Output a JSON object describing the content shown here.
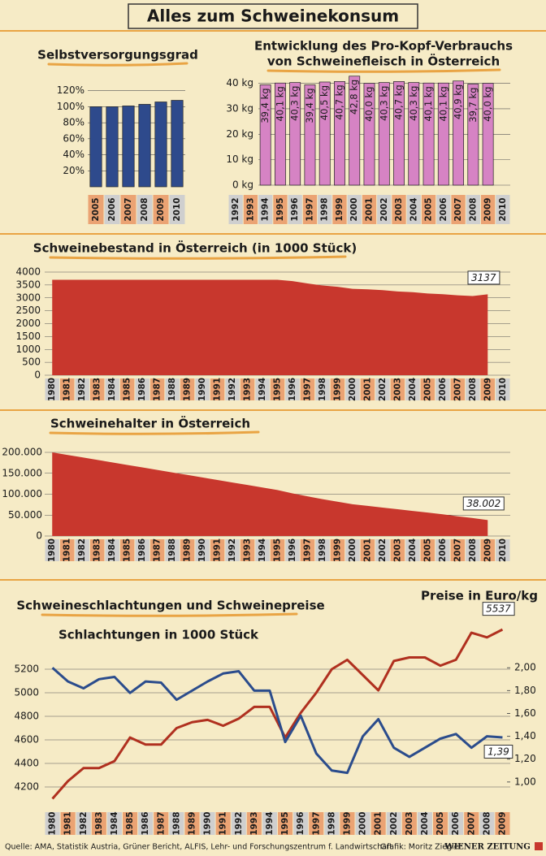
{
  "title": "Alles zum Schweinekonsum",
  "footer": {
    "source": "Quelle: AMA, Statistik Austria, Grüner Bericht, ALFIS, Lehr- und Forschungszentrum f. Landwirtschaft",
    "credit": "Grafik: Moritz Ziegler",
    "brand": "WIENER ZEITUNG"
  },
  "chart_data": [
    {
      "type": "bar",
      "title": "Selbstversorgungsgrad",
      "color": "#2e4a8c",
      "categories": [
        "2005",
        "2006",
        "2007",
        "2008",
        "2009",
        "2010"
      ],
      "values": [
        100,
        100,
        101,
        103,
        106,
        108
      ],
      "ylim": [
        0,
        140
      ],
      "yticks": [
        {
          "value": 20,
          "label": "20%"
        },
        {
          "value": 40,
          "label": "40%"
        },
        {
          "value": 60,
          "label": "60%"
        },
        {
          "value": 80,
          "label": "80%"
        },
        {
          "value": 100,
          "label": "100%"
        },
        {
          "value": 120,
          "label": "120%"
        }
      ],
      "grid": true
    },
    {
      "type": "bar",
      "title": [
        "Entwicklung des Pro-Kopf-Verbrauchs",
        "von Schweinefleisch in Österreich"
      ],
      "color": "#d683c4",
      "categories": [
        "1992",
        "1993",
        "1994",
        "1995",
        "1996",
        "1997",
        "1998",
        "1999",
        "2000",
        "2001",
        "2002",
        "2003",
        "2004",
        "2005",
        "2006",
        "2007",
        "2008",
        "2009",
        "2010"
      ],
      "values": [
        null,
        null,
        39.4,
        40.1,
        40.3,
        39.4,
        40.5,
        40.7,
        42.8,
        40.0,
        40.3,
        40.7,
        40.3,
        40.1,
        40.1,
        40.9,
        39.7,
        40.0,
        null
      ],
      "value_labels": [
        null,
        null,
        "39,4 kg",
        "40,1 kg",
        "40,3 kg",
        "39,4 kg",
        "40,5 kg",
        "40,7 kg",
        "42,8 kg",
        "40,0 kg",
        "40,3 kg",
        "40,7 kg",
        "40,3 kg",
        "40,1 kg",
        "40,1 kg",
        "40,9 kg",
        "39,7 kg",
        "40,0 kg",
        null
      ],
      "ylim": [
        0,
        44
      ],
      "yticks": [
        {
          "value": 0,
          "label": "0 kg"
        },
        {
          "value": 10,
          "label": "10 kg"
        },
        {
          "value": 20,
          "label": "20 kg"
        },
        {
          "value": 30,
          "label": "30 kg"
        },
        {
          "value": 40,
          "label": "40 kg"
        }
      ],
      "grid": true
    },
    {
      "type": "area",
      "title": "Schweinebestand in Österreich (in 1000 Stück)",
      "color": "#c8372d",
      "categories": [
        "1980",
        "1981",
        "1982",
        "1983",
        "1984",
        "1985",
        "1986",
        "1987",
        "1988",
        "1989",
        "1990",
        "1991",
        "1992",
        "1993",
        "1994",
        "1995",
        "1996",
        "1997",
        "1998",
        "1999",
        "2000",
        "2001",
        "2002",
        "2003",
        "2004",
        "2005",
        "2006",
        "2007",
        "2008",
        "2009",
        "2010"
      ],
      "values": [
        3700,
        3700,
        3700,
        3700,
        3700,
        3700,
        3700,
        3700,
        3700,
        3700,
        3700,
        3700,
        3700,
        3700,
        3700,
        3700,
        3650,
        3560,
        3480,
        3430,
        3350,
        3330,
        3300,
        3250,
        3220,
        3170,
        3140,
        3100,
        3070,
        3137,
        null
      ],
      "value_labels": [
        null,
        null,
        null,
        null,
        null,
        null,
        null,
        null,
        null,
        null,
        null,
        null,
        null,
        null,
        null,
        null,
        null,
        null,
        null,
        null,
        null,
        null,
        null,
        null,
        null,
        null,
        null,
        null,
        null,
        "3137",
        null
      ],
      "ylim": [
        0,
        4000
      ],
      "yticks": [
        0,
        500,
        1000,
        1500,
        2000,
        2500,
        3000,
        3500,
        4000
      ],
      "grid": true
    },
    {
      "type": "area",
      "title": "Schweinehalter in Österreich",
      "color": "#c8372d",
      "categories": [
        "1980",
        "1981",
        "1982",
        "1983",
        "1984",
        "1985",
        "1986",
        "1987",
        "1988",
        "1989",
        "1990",
        "1991",
        "1992",
        "1993",
        "1994",
        "1995",
        "1996",
        "1997",
        "1998",
        "1999",
        "2000",
        "2001",
        "2002",
        "2003",
        "2004",
        "2005",
        "2006",
        "2007",
        "2008",
        "2009",
        "2010"
      ],
      "values": [
        200000,
        194000,
        188000,
        182000,
        176000,
        170000,
        164000,
        158000,
        152000,
        146000,
        140000,
        134000,
        128000,
        122000,
        116000,
        110000,
        102000,
        95000,
        88000,
        82000,
        76000,
        72000,
        68000,
        64000,
        60000,
        56000,
        52000,
        47000,
        43000,
        38002,
        null
      ],
      "value_labels": [
        null,
        null,
        null,
        null,
        null,
        null,
        null,
        null,
        null,
        null,
        null,
        null,
        null,
        null,
        null,
        null,
        null,
        null,
        null,
        null,
        null,
        null,
        null,
        null,
        null,
        null,
        null,
        null,
        null,
        "38.002",
        null
      ],
      "ylim": [
        0,
        200000
      ],
      "yticks": [
        0,
        {
          "value": 50000,
          "label": "50.000"
        },
        {
          "value": 100000,
          "label": "100.000"
        },
        {
          "value": 150000,
          "label": "150.000"
        },
        {
          "value": 200000,
          "label": "200.000"
        }
      ],
      "grid": true
    },
    {
      "type": "line",
      "title": "Schweineschlachtungen und Schweinepreise",
      "categories": [
        "1980",
        "1981",
        "1982",
        "1983",
        "1984",
        "1985",
        "1986",
        "1987",
        "1988",
        "1989",
        "1990",
        "1991",
        "1992",
        "1993",
        "1994",
        "1995",
        "1996",
        "1997",
        "1998",
        "1999",
        "2000",
        "2001",
        "2002",
        "2003",
        "2004",
        "2005",
        "2006",
        "2007",
        "2008",
        "2009"
      ],
      "series": [
        {
          "name": "Schlachtungen in 1000 Stück",
          "color": "#b0301f",
          "axis": "y",
          "values": [
            4100,
            4250,
            4360,
            4360,
            4420,
            4620,
            4560,
            4560,
            4700,
            4750,
            4770,
            4720,
            4780,
            4880,
            4880,
            4620,
            4830,
            5000,
            5200,
            5280,
            5150,
            5020,
            5270,
            5300,
            5300,
            5230,
            5280,
            5510,
            5470,
            5537
          ],
          "value_labels": [
            null,
            null,
            null,
            null,
            null,
            null,
            null,
            null,
            null,
            null,
            null,
            null,
            null,
            null,
            null,
            null,
            null,
            null,
            null,
            null,
            null,
            null,
            null,
            null,
            null,
            null,
            null,
            null,
            null,
            "5537"
          ]
        },
        {
          "name": "Preise in Euro/kg",
          "color": "#2b4c8c",
          "axis": "y2",
          "values": [
            2.0,
            1.88,
            1.82,
            1.9,
            1.92,
            1.78,
            1.88,
            1.87,
            1.72,
            1.8,
            1.88,
            1.95,
            1.97,
            1.8,
            1.8,
            1.35,
            1.58,
            1.25,
            1.1,
            1.08,
            1.4,
            1.55,
            1.3,
            1.22,
            1.3,
            1.38,
            1.42,
            1.3,
            1.4,
            1.39
          ],
          "value_labels": [
            null,
            null,
            null,
            null,
            null,
            null,
            null,
            null,
            null,
            null,
            null,
            null,
            null,
            null,
            null,
            null,
            null,
            null,
            null,
            null,
            null,
            null,
            null,
            null,
            null,
            null,
            null,
            null,
            null,
            "1,39"
          ]
        }
      ],
      "ylim": [
        4000,
        5600
      ],
      "yticks": [
        4200,
        4400,
        4600,
        4800,
        5000,
        5200
      ],
      "y2lim": [
        0.75,
        2.4
      ],
      "y2ticks": [
        {
          "value": 1.0,
          "label": "1,00"
        },
        {
          "value": 1.2,
          "label": "1,20"
        },
        {
          "value": 1.4,
          "label": "1,40"
        },
        {
          "value": 1.6,
          "label": "1,60"
        },
        {
          "value": 1.8,
          "label": "1,80"
        },
        {
          "value": 2.0,
          "label": "2,00"
        }
      ],
      "grid": true
    }
  ]
}
